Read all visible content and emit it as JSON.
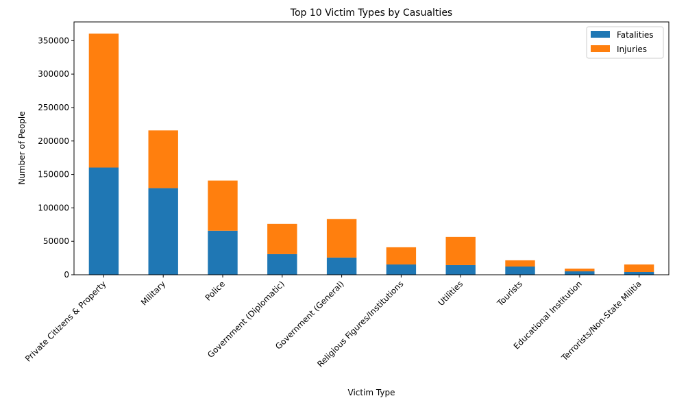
{
  "chart_data": {
    "type": "bar",
    "stacked": true,
    "title": "Top 10 Victim Types by Casualties",
    "xlabel": "Victim Type",
    "ylabel": "Number of People",
    "ylim": [
      0,
      378000
    ],
    "yticks": [
      0,
      50000,
      100000,
      150000,
      200000,
      250000,
      300000,
      350000
    ],
    "categories": [
      "Private Citizens & Property",
      "Military",
      "Police",
      "Government (Diplomatic)",
      "Government (General)",
      "Religious Figures/Institutions",
      "Utilities",
      "Tourists",
      "Educational Institution",
      "Terrorists/Non-State Militia"
    ],
    "series": [
      {
        "name": "Fatalities",
        "color": "#1f77b4",
        "values": [
          160300,
          129500,
          65800,
          30800,
          25700,
          15400,
          14400,
          12300,
          5100,
          4100
        ]
      },
      {
        "name": "Injuries",
        "color": "#ff7f0e",
        "values": [
          200300,
          86300,
          75000,
          45200,
          57500,
          25700,
          42100,
          9300,
          4100,
          11300
        ]
      }
    ],
    "legend": "top-right",
    "grid": false
  }
}
